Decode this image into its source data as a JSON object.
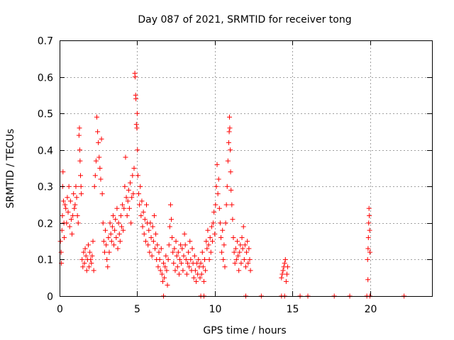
{
  "chart_data": {
    "type": "scatter",
    "title": "Day 087 of 2021, SRMTID for receiver tong",
    "xlabel": "GPS time / hours",
    "ylabel": "SRMTID / TECUs",
    "xlim": [
      0,
      24
    ],
    "ylim": [
      0,
      0.7
    ],
    "xticks": [
      0,
      5,
      10,
      15,
      20
    ],
    "xtick_labels": [
      "0",
      "5",
      "10",
      "15",
      "20"
    ],
    "yticks": [
      0,
      0.1,
      0.2,
      0.3,
      0.4,
      0.5,
      0.6,
      0.7
    ],
    "ytick_labels": [
      "0",
      "0.1",
      "0.2",
      "0.3",
      "0.4",
      "0.5",
      "0.6",
      "0.7"
    ],
    "grid": true,
    "marker": "+",
    "color": "#ff0000",
    "series": [
      {
        "name": "SRMTID",
        "points": [
          [
            0.05,
            0.15
          ],
          [
            0.1,
            0.12
          ],
          [
            0.12,
            0.09
          ],
          [
            0.15,
            0.18
          ],
          [
            0.18,
            0.22
          ],
          [
            0.2,
            0.3
          ],
          [
            0.22,
            0.34
          ],
          [
            0.25,
            0.26
          ],
          [
            0.28,
            0.2
          ],
          [
            0.3,
            0.16
          ],
          [
            0.35,
            0.25
          ],
          [
            0.4,
            0.24
          ],
          [
            0.45,
            0.2
          ],
          [
            0.5,
            0.27
          ],
          [
            0.55,
            0.23
          ],
          [
            0.6,
            0.3
          ],
          [
            0.65,
            0.19
          ],
          [
            0.7,
            0.26
          ],
          [
            0.75,
            0.21
          ],
          [
            0.8,
            0.17
          ],
          [
            0.85,
            0.22
          ],
          [
            0.9,
            0.28
          ],
          [
            0.95,
            0.24
          ],
          [
            1.0,
            0.25
          ],
          [
            1.05,
            0.3
          ],
          [
            1.1,
            0.27
          ],
          [
            1.15,
            0.22
          ],
          [
            1.2,
            0.2
          ],
          [
            1.25,
            0.44
          ],
          [
            1.28,
            0.46
          ],
          [
            1.3,
            0.4
          ],
          [
            1.32,
            0.37
          ],
          [
            1.35,
            0.33
          ],
          [
            1.38,
            0.3
          ],
          [
            1.4,
            0.28
          ],
          [
            1.45,
            0.1
          ],
          [
            1.5,
            0.08
          ],
          [
            1.55,
            0.12
          ],
          [
            1.6,
            0.09
          ],
          [
            1.65,
            0.13
          ],
          [
            1.7,
            0.11
          ],
          [
            1.75,
            0.07
          ],
          [
            1.8,
            0.1
          ],
          [
            1.85,
            0.14
          ],
          [
            1.9,
            0.08
          ],
          [
            1.95,
            0.12
          ],
          [
            2.0,
            0.1
          ],
          [
            2.05,
            0.09
          ],
          [
            2.1,
            0.11
          ],
          [
            2.15,
            0.15
          ],
          [
            2.2,
            0.07
          ],
          [
            2.25,
            0.3
          ],
          [
            2.3,
            0.33
          ],
          [
            2.35,
            0.37
          ],
          [
            2.4,
            0.49
          ],
          [
            2.45,
            0.45
          ],
          [
            2.5,
            0.42
          ],
          [
            2.55,
            0.38
          ],
          [
            2.6,
            0.35
          ],
          [
            2.65,
            0.32
          ],
          [
            2.7,
            0.43
          ],
          [
            2.75,
            0.28
          ],
          [
            2.8,
            0.2
          ],
          [
            2.85,
            0.15
          ],
          [
            2.9,
            0.12
          ],
          [
            2.95,
            0.18
          ],
          [
            3.0,
            0.14
          ],
          [
            3.05,
            0.1
          ],
          [
            3.1,
            0.08
          ],
          [
            3.15,
            0.16
          ],
          [
            3.2,
            0.12
          ],
          [
            3.25,
            0.2
          ],
          [
            3.3,
            0.17
          ],
          [
            3.35,
            0.15
          ],
          [
            3.4,
            0.19
          ],
          [
            3.45,
            0.22
          ],
          [
            3.5,
            0.14
          ],
          [
            3.55,
            0.18
          ],
          [
            3.6,
            0.21
          ],
          [
            3.65,
            0.16
          ],
          [
            3.7,
            0.24
          ],
          [
            3.75,
            0.13
          ],
          [
            3.8,
            0.2
          ],
          [
            3.85,
            0.17
          ],
          [
            3.9,
            0.15
          ],
          [
            3.95,
            0.22
          ],
          [
            4.0,
            0.19
          ],
          [
            4.05,
            0.25
          ],
          [
            4.1,
            0.18
          ],
          [
            4.15,
            0.24
          ],
          [
            4.2,
            0.3
          ],
          [
            4.25,
            0.38
          ],
          [
            4.3,
            0.27
          ],
          [
            4.35,
            0.22
          ],
          [
            4.4,
            0.26
          ],
          [
            4.45,
            0.29
          ],
          [
            4.5,
            0.24
          ],
          [
            4.55,
            0.31
          ],
          [
            4.6,
            0.2
          ],
          [
            4.65,
            0.27
          ],
          [
            4.7,
            0.33
          ],
          [
            4.75,
            0.28
          ],
          [
            4.8,
            0.35
          ],
          [
            4.85,
            0.61
          ],
          [
            4.87,
            0.6
          ],
          [
            4.9,
            0.55
          ],
          [
            4.92,
            0.54
          ],
          [
            4.95,
            0.47
          ],
          [
            4.98,
            0.46
          ],
          [
            5.0,
            0.5
          ],
          [
            5.02,
            0.4
          ],
          [
            5.05,
            0.33
          ],
          [
            5.1,
            0.28
          ],
          [
            5.15,
            0.25
          ],
          [
            5.2,
            0.3
          ],
          [
            5.25,
            0.22
          ],
          [
            5.3,
            0.26
          ],
          [
            5.35,
            0.19
          ],
          [
            5.4,
            0.23
          ],
          [
            5.45,
            0.17
          ],
          [
            5.5,
            0.21
          ],
          [
            5.55,
            0.15
          ],
          [
            5.6,
            0.25
          ],
          [
            5.65,
            0.2
          ],
          [
            5.7,
            0.14
          ],
          [
            5.75,
            0.18
          ],
          [
            5.8,
            0.12
          ],
          [
            5.85,
            0.2
          ],
          [
            5.9,
            0.16
          ],
          [
            5.95,
            0.11
          ],
          [
            6.0,
            0.19
          ],
          [
            6.05,
            0.15
          ],
          [
            6.1,
            0.22
          ],
          [
            6.15,
            0.13
          ],
          [
            6.2,
            0.17
          ],
          [
            6.25,
            0.1
          ],
          [
            6.3,
            0.14
          ],
          [
            6.35,
            0.08
          ],
          [
            6.4,
            0.12
          ],
          [
            6.45,
            0.1
          ],
          [
            6.5,
            0.07
          ],
          [
            6.55,
            0.13
          ],
          [
            6.6,
            0.06
          ],
          [
            6.65,
            0.04
          ],
          [
            6.7,
            0.09
          ],
          [
            6.75,
            0.05
          ],
          [
            6.8,
            0.08
          ],
          [
            6.85,
            0.11
          ],
          [
            6.9,
            0.07
          ],
          [
            6.95,
            0.03
          ],
          [
            7.0,
            0.1
          ],
          [
            7.05,
            0.14
          ],
          [
            7.1,
            0.19
          ],
          [
            7.15,
            0.25
          ],
          [
            7.2,
            0.21
          ],
          [
            7.25,
            0.16
          ],
          [
            7.3,
            0.12
          ],
          [
            7.35,
            0.09
          ],
          [
            7.4,
            0.13
          ],
          [
            7.45,
            0.07
          ],
          [
            7.5,
            0.15
          ],
          [
            7.55,
            0.11
          ],
          [
            7.6,
            0.08
          ],
          [
            7.65,
            0.12
          ],
          [
            7.7,
            0.06
          ],
          [
            7.75,
            0.1
          ],
          [
            7.8,
            0.14
          ],
          [
            7.85,
            0.09
          ],
          [
            7.9,
            0.13
          ],
          [
            7.95,
            0.07
          ],
          [
            8.0,
            0.11
          ],
          [
            8.05,
            0.17
          ],
          [
            8.1,
            0.14
          ],
          [
            8.15,
            0.1
          ],
          [
            8.2,
            0.06
          ],
          [
            8.25,
            0.09
          ],
          [
            8.3,
            0.12
          ],
          [
            8.35,
            0.08
          ],
          [
            8.4,
            0.15
          ],
          [
            8.45,
            0.1
          ],
          [
            8.5,
            0.07
          ],
          [
            8.55,
            0.13
          ],
          [
            8.6,
            0.09
          ],
          [
            8.65,
            0.05
          ],
          [
            8.7,
            0.11
          ],
          [
            8.75,
            0.07
          ],
          [
            8.8,
            0.04
          ],
          [
            8.85,
            0.09
          ],
          [
            8.9,
            0.06
          ],
          [
            8.95,
            0.1
          ],
          [
            9.0,
            0.08
          ],
          [
            9.05,
            0.05
          ],
          [
            9.1,
            0.09
          ],
          [
            9.15,
            0.06
          ],
          [
            9.2,
            0.12
          ],
          [
            9.25,
            0.08
          ],
          [
            9.3,
            0.04
          ],
          [
            9.35,
            0.1
          ],
          [
            9.4,
            0.07
          ],
          [
            9.45,
            0.15
          ],
          [
            9.5,
            0.13
          ],
          [
            9.55,
            0.18
          ],
          [
            9.6,
            0.14
          ],
          [
            9.65,
            0.1
          ],
          [
            9.7,
            0.16
          ],
          [
            9.75,
            0.12
          ],
          [
            9.8,
            0.19
          ],
          [
            9.85,
            0.15
          ],
          [
            9.9,
            0.2
          ],
          [
            9.95,
            0.23
          ],
          [
            10.0,
            0.17
          ],
          [
            10.05,
            0.25
          ],
          [
            10.1,
            0.3
          ],
          [
            10.15,
            0.36
          ],
          [
            10.2,
            0.28
          ],
          [
            10.25,
            0.32
          ],
          [
            10.3,
            0.24
          ],
          [
            10.35,
            0.2
          ],
          [
            10.4,
            0.16
          ],
          [
            10.45,
            0.12
          ],
          [
            10.5,
            0.18
          ],
          [
            10.55,
            0.1
          ],
          [
            10.6,
            0.14
          ],
          [
            10.65,
            0.08
          ],
          [
            10.7,
            0.2
          ],
          [
            10.75,
            0.25
          ],
          [
            10.8,
            0.3
          ],
          [
            10.85,
            0.37
          ],
          [
            10.9,
            0.42
          ],
          [
            10.93,
            0.45
          ],
          [
            10.95,
            0.49
          ],
          [
            10.97,
            0.46
          ],
          [
            11.0,
            0.4
          ],
          [
            11.02,
            0.34
          ],
          [
            11.05,
            0.29
          ],
          [
            11.1,
            0.25
          ],
          [
            11.15,
            0.21
          ],
          [
            11.2,
            0.16
          ],
          [
            11.25,
            0.12
          ],
          [
            11.3,
            0.09
          ],
          [
            11.35,
            0.13
          ],
          [
            11.4,
            0.1
          ],
          [
            11.45,
            0.15
          ],
          [
            11.5,
            0.11
          ],
          [
            11.55,
            0.07
          ],
          [
            11.6,
            0.12
          ],
          [
            11.65,
            0.14
          ],
          [
            11.7,
            0.09
          ],
          [
            11.75,
            0.16
          ],
          [
            11.8,
            0.13
          ],
          [
            11.85,
            0.19
          ],
          [
            11.9,
            0.1
          ],
          [
            11.95,
            0.14
          ],
          [
            12.0,
            0.08
          ],
          [
            12.05,
            0.12
          ],
          [
            12.1,
            0.15
          ],
          [
            12.15,
            0.09
          ],
          [
            12.2,
            0.13
          ],
          [
            12.25,
            0.1
          ],
          [
            12.3,
            0.07
          ],
          [
            14.3,
            0.05
          ],
          [
            14.35,
            0.06
          ],
          [
            14.4,
            0.07
          ],
          [
            14.45,
            0.08
          ],
          [
            14.5,
            0.09
          ],
          [
            14.55,
            0.1
          ],
          [
            14.6,
            0.04
          ],
          [
            14.65,
            0.06
          ],
          [
            14.7,
            0.08
          ],
          [
            19.85,
            0.1
          ],
          [
            19.88,
            0.13
          ],
          [
            19.9,
            0.16
          ],
          [
            19.92,
            0.2
          ],
          [
            19.94,
            0.24
          ],
          [
            19.96,
            0.22
          ],
          [
            19.98,
            0.18
          ],
          [
            20.0,
            0.12
          ],
          [
            19.87,
            0.045
          ],
          [
            6.7,
            0.0
          ],
          [
            9.1,
            0.0
          ],
          [
            9.3,
            0.0
          ],
          [
            12.0,
            0.0
          ],
          [
            13.0,
            0.0
          ],
          [
            14.3,
            0.0
          ],
          [
            14.5,
            0.0
          ],
          [
            15.5,
            0.0
          ],
          [
            16.0,
            0.0
          ],
          [
            17.7,
            0.0
          ],
          [
            18.7,
            0.0
          ],
          [
            19.8,
            0.0
          ],
          [
            20.0,
            0.0
          ],
          [
            22.2,
            0.0
          ]
        ]
      }
    ]
  }
}
